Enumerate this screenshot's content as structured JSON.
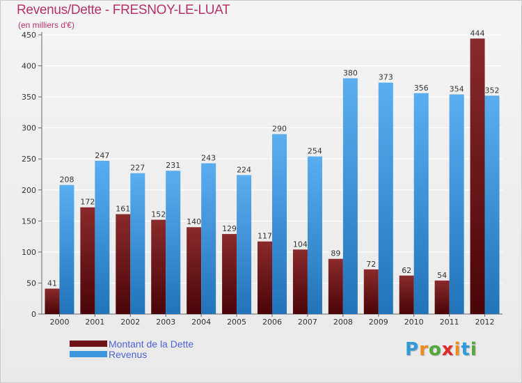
{
  "title": "Revenus/Dette - FRESNOY-LE-LUAT",
  "subtitle": "(en milliers d'€)",
  "colors": {
    "title": "#b5336a",
    "dette": "#6e1418",
    "revenus": "#3d95de",
    "legend_text": "#4f63d6"
  },
  "chart_data": {
    "type": "bar",
    "categories": [
      "2000",
      "2001",
      "2002",
      "2003",
      "2004",
      "2005",
      "2006",
      "2007",
      "2008",
      "2009",
      "2010",
      "2011",
      "2012"
    ],
    "series": [
      {
        "name": "Montant de la Dette",
        "values": [
          41,
          172,
          161,
          152,
          140,
          129,
          117,
          104,
          89,
          72,
          62,
          54,
          444
        ]
      },
      {
        "name": "Revenus",
        "values": [
          208,
          247,
          227,
          231,
          243,
          224,
          290,
          254,
          380,
          373,
          356,
          354,
          352
        ]
      }
    ],
    "ylim": [
      0,
      450
    ],
    "yticks": [
      0,
      50,
      100,
      150,
      200,
      250,
      300,
      350,
      400,
      450
    ],
    "grid": true,
    "xlabel": "",
    "ylabel": "",
    "legend_position": "bottom-left"
  },
  "legend": [
    {
      "label": "Montant de la Dette",
      "color": "#6e1418"
    },
    {
      "label": "Revenus",
      "color": "#3d95de"
    }
  ],
  "logo": {
    "letters": [
      "P",
      "r",
      "o",
      "x",
      "i",
      "t",
      "i"
    ],
    "colors": [
      "#2f9ad8",
      "#f08a1c",
      "#52a83a",
      "#e02a2a",
      "#f08a1c",
      "#2f9ad8",
      "#52a83a"
    ]
  }
}
